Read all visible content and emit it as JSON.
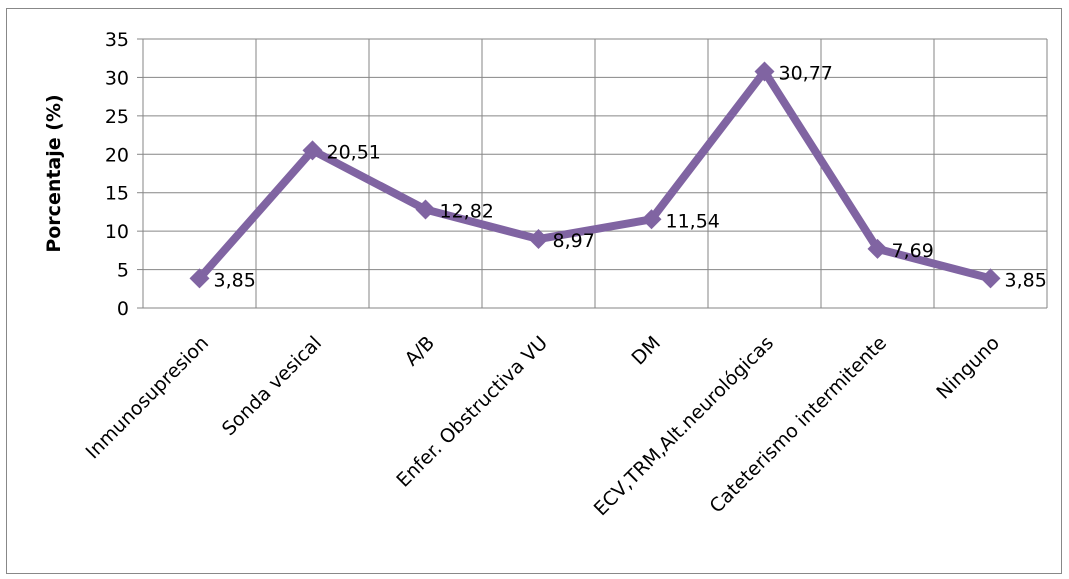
{
  "chart_data": {
    "type": "line",
    "categories": [
      "Inmunosupresion",
      "Sonda vesical",
      "A/B",
      "Enfer. Obstructiva VU",
      "DM",
      "ECV,TRM,Alt.neurológicas",
      "Cateterismo intermitente",
      "Ninguno"
    ],
    "series": [
      {
        "values": [
          3.85,
          20.51,
          12.82,
          8.97,
          11.54,
          30.77,
          7.69,
          3.85
        ]
      }
    ],
    "data_labels": [
      "3,85",
      "20,51",
      "12,82",
      "8,97",
      "11,54",
      "30,77",
      "7,69",
      "3,85"
    ],
    "ylabel": "Porcentaje (%)",
    "xlabel": "",
    "title": "",
    "ylim": [
      0,
      35
    ],
    "yticks": [
      0,
      5,
      10,
      15,
      20,
      25,
      30,
      35
    ],
    "grid": true,
    "legend": "none",
    "colors": {
      "series": "#8064a2",
      "grid": "#868686",
      "axis": "#868686"
    }
  }
}
